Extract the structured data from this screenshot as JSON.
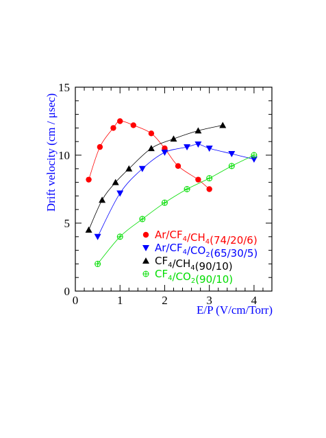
{
  "chart_data": {
    "type": "line",
    "title": "",
    "xlabel": "E/P (V/cm/Torr)",
    "ylabel": "Drift velocity (cm / μsec)",
    "xlim": [
      0,
      4.4
    ],
    "ylim": [
      0,
      15
    ],
    "xticks": [
      0,
      1,
      2,
      3,
      4
    ],
    "yticks": [
      0,
      5,
      10,
      15
    ],
    "xtick_labels": [
      "0",
      "1",
      "2",
      "3",
      "4"
    ],
    "ytick_labels": [
      "0",
      "5",
      "10",
      "15"
    ],
    "grid": false,
    "legend_position": "right-middle",
    "series": [
      {
        "name": "Ar/CF4/CH4(74/20/6)",
        "legend_parts": [
          [
            "Ar/CF",
            ""
          ],
          [
            "4",
            "sub"
          ],
          [
            "/CH",
            ""
          ],
          [
            "4",
            "sub"
          ],
          [
            "(74/20/6)",
            ""
          ]
        ],
        "color": "#ff0000",
        "marker": "circle",
        "x": [
          0.3,
          0.55,
          0.85,
          1.0,
          1.3,
          1.7,
          2.0,
          2.3,
          2.75,
          3.0
        ],
        "y": [
          8.2,
          10.6,
          12.0,
          12.5,
          12.2,
          11.6,
          10.5,
          9.2,
          8.2,
          7.5
        ]
      },
      {
        "name": "Ar/CF4/CO2(65/30/5)",
        "legend_parts": [
          [
            "Ar/CF",
            ""
          ],
          [
            "4",
            "sub"
          ],
          [
            "/CO",
            ""
          ],
          [
            "2",
            "sub"
          ],
          [
            "(65/30/5)",
            ""
          ]
        ],
        "color": "#0000ff",
        "marker": "triangle-down",
        "x": [
          0.5,
          1.0,
          1.5,
          2.0,
          2.5,
          2.75,
          3.0,
          3.5,
          4.0
        ],
        "y": [
          4.0,
          7.2,
          9.0,
          10.2,
          10.6,
          10.8,
          10.5,
          10.1,
          9.7
        ]
      },
      {
        "name": "CF4/CH4(90/10)",
        "legend_parts": [
          [
            "CF",
            ""
          ],
          [
            "4",
            "sub"
          ],
          [
            "/CH",
            ""
          ],
          [
            "4",
            "sub"
          ],
          [
            "(90/10)",
            ""
          ]
        ],
        "color": "#000000",
        "marker": "triangle-up",
        "x": [
          0.3,
          0.6,
          0.9,
          1.2,
          1.7,
          2.2,
          2.75,
          3.3
        ],
        "y": [
          4.5,
          6.7,
          8.0,
          9.0,
          10.5,
          11.2,
          11.8,
          12.2
        ]
      },
      {
        "name": "CF4/CO2(90/10)",
        "legend_parts": [
          [
            "CF",
            ""
          ],
          [
            "4",
            "sub"
          ],
          [
            "/CO",
            ""
          ],
          [
            "2",
            "sub"
          ],
          [
            "(90/10)",
            ""
          ]
        ],
        "color": "#00dd00",
        "marker": "circle-plus-open",
        "x": [
          0.5,
          1.0,
          1.5,
          2.0,
          2.5,
          3.0,
          3.5,
          4.0
        ],
        "y": [
          2.0,
          4.0,
          5.3,
          6.5,
          7.5,
          8.3,
          9.2,
          10.0
        ]
      }
    ]
  }
}
